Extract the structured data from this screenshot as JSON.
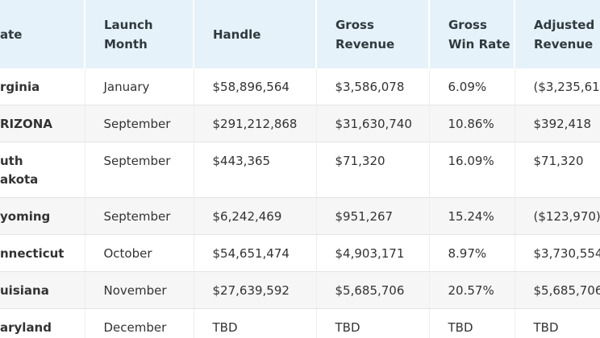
{
  "table": {
    "headers": [
      "ate",
      "Launch Month",
      "Handle",
      "Gross Revenue",
      "Gross Win Rate",
      "Adjusted Revenue"
    ],
    "rows": [
      [
        "rginia",
        "January",
        "$58,896,564",
        "$3,586,078",
        "6.09%",
        "($3,235,61"
      ],
      [
        "RIZONA",
        "September",
        "$291,212,868",
        "$31,630,740",
        "10.86%",
        "$392,418"
      ],
      [
        "uth akota",
        "September",
        "$443,365",
        "$71,320",
        "16.09%",
        "$71,320"
      ],
      [
        "yoming",
        "September",
        "$6,242,469",
        "$951,267",
        "15.24%",
        "($123,970)"
      ],
      [
        "nnecticut",
        "October",
        "$54,651,474",
        "$4,903,171",
        "8.97%",
        "$3,730,554"
      ],
      [
        "uisiana",
        "November",
        "$27,639,592",
        "$5,685,706",
        "20.57%",
        "$5,685,706"
      ],
      [
        "aryland",
        "December",
        "TBD",
        "TBD",
        "TBD",
        "TBD"
      ]
    ]
  }
}
